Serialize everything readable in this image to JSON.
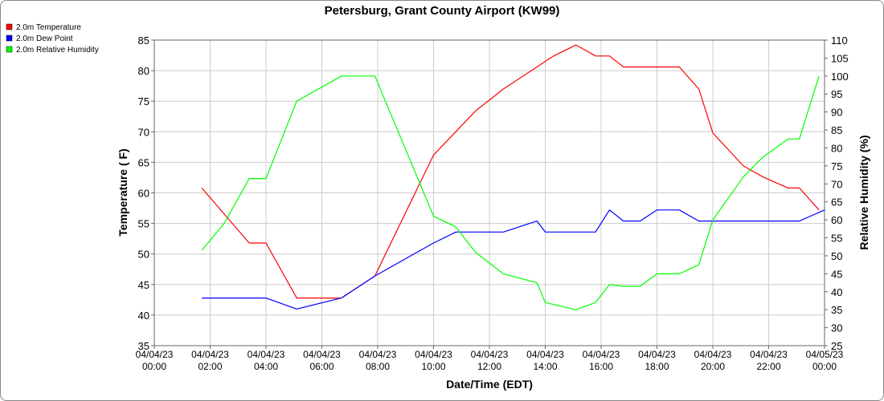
{
  "chart_data": {
    "type": "line",
    "title": "Petersburg, Grant County Airport (KW99)",
    "xlabel": "Date/Time (EDT)",
    "ylabel_left": "Temperature ( F)",
    "ylabel_right": "Relative Humidity (%)",
    "ylim_left": [
      35,
      85
    ],
    "ylim_right": [
      25,
      110
    ],
    "grid": true,
    "legend_position": "top-left",
    "x_ticks": [
      {
        "hour": 0,
        "date": "04/04/23",
        "time": "00:00"
      },
      {
        "hour": 2,
        "date": "04/04/23",
        "time": "02:00"
      },
      {
        "hour": 4,
        "date": "04/04/23",
        "time": "04:00"
      },
      {
        "hour": 6,
        "date": "04/04/23",
        "time": "06:00"
      },
      {
        "hour": 8,
        "date": "04/04/23",
        "time": "08:00"
      },
      {
        "hour": 10,
        "date": "04/04/23",
        "time": "10:00"
      },
      {
        "hour": 12,
        "date": "04/04/23",
        "time": "12:00"
      },
      {
        "hour": 14,
        "date": "04/04/23",
        "time": "14:00"
      },
      {
        "hour": 16,
        "date": "04/04/23",
        "time": "16:00"
      },
      {
        "hour": 18,
        "date": "04/04/23",
        "time": "18:00"
      },
      {
        "hour": 20,
        "date": "04/04/23",
        "time": "20:00"
      },
      {
        "hour": 22,
        "date": "04/04/23",
        "time": "22:00"
      },
      {
        "hour": 24,
        "date": "04/05/23",
        "time": "00:00"
      }
    ],
    "y_ticks_left": [
      35,
      40,
      45,
      50,
      55,
      60,
      65,
      70,
      75,
      80,
      85
    ],
    "y_ticks_right": [
      25,
      30,
      35,
      40,
      45,
      50,
      55,
      60,
      65,
      70,
      75,
      80,
      85,
      90,
      95,
      100,
      105,
      110
    ],
    "series": [
      {
        "name": "2.0m Temperature",
        "color": "#ff0000",
        "axis": "left",
        "points": [
          [
            1.7,
            60.8
          ],
          [
            3.4,
            51.8
          ],
          [
            4,
            51.8
          ],
          [
            5.1,
            42.8
          ],
          [
            6.7,
            42.8
          ],
          [
            7.9,
            46.4
          ],
          [
            10,
            66.2
          ],
          [
            11.5,
            73.4
          ],
          [
            12.5,
            77
          ],
          [
            13.7,
            80.6
          ],
          [
            14.3,
            82.4
          ],
          [
            15.1,
            84.2
          ],
          [
            15.8,
            82.4
          ],
          [
            16.3,
            82.4
          ],
          [
            16.8,
            80.6
          ],
          [
            18,
            80.6
          ],
          [
            18.8,
            80.6
          ],
          [
            19.5,
            77
          ],
          [
            20,
            69.8
          ],
          [
            21.1,
            64.4
          ],
          [
            21.8,
            62.6
          ],
          [
            22.7,
            60.8
          ],
          [
            23.1,
            60.8
          ],
          [
            23.8,
            57.2
          ]
        ]
      },
      {
        "name": "2.0m Dew Point",
        "color": "#0000ff",
        "axis": "left",
        "points": [
          [
            1.7,
            42.8
          ],
          [
            4,
            42.8
          ],
          [
            5.1,
            41
          ],
          [
            6.7,
            42.8
          ],
          [
            7.9,
            46.4
          ],
          [
            10,
            51.8
          ],
          [
            10.8,
            53.6
          ],
          [
            12.5,
            53.6
          ],
          [
            13.7,
            55.4
          ],
          [
            14,
            53.6
          ],
          [
            15.8,
            53.6
          ],
          [
            16.3,
            57.2
          ],
          [
            16.8,
            55.4
          ],
          [
            17.4,
            55.4
          ],
          [
            18,
            57.2
          ],
          [
            18.8,
            57.2
          ],
          [
            19.5,
            55.4
          ],
          [
            20,
            55.4
          ],
          [
            21.1,
            55.4
          ],
          [
            23.1,
            55.4
          ],
          [
            24,
            57.2
          ]
        ]
      },
      {
        "name": "2.0m Relative Humidity",
        "color": "#00ff00",
        "axis": "right",
        "points": [
          [
            1.7,
            51.5
          ],
          [
            2.5,
            59
          ],
          [
            3.4,
            71.5
          ],
          [
            4,
            71.5
          ],
          [
            5.1,
            93
          ],
          [
            6.7,
            100
          ],
          [
            7.9,
            100
          ],
          [
            10,
            61
          ],
          [
            10.8,
            58
          ],
          [
            11.5,
            51
          ],
          [
            12.5,
            45
          ],
          [
            13.7,
            42.5
          ],
          [
            14,
            37
          ],
          [
            15.1,
            35
          ],
          [
            15.8,
            37
          ],
          [
            16.3,
            42
          ],
          [
            16.8,
            41.5
          ],
          [
            17.4,
            41.5
          ],
          [
            18,
            45
          ],
          [
            18.8,
            45
          ],
          [
            19.5,
            47.5
          ],
          [
            20,
            60
          ],
          [
            21.1,
            72
          ],
          [
            21.8,
            77.5
          ],
          [
            22.7,
            82.5
          ],
          [
            23.1,
            82.5
          ],
          [
            23.8,
            100
          ]
        ]
      }
    ]
  }
}
